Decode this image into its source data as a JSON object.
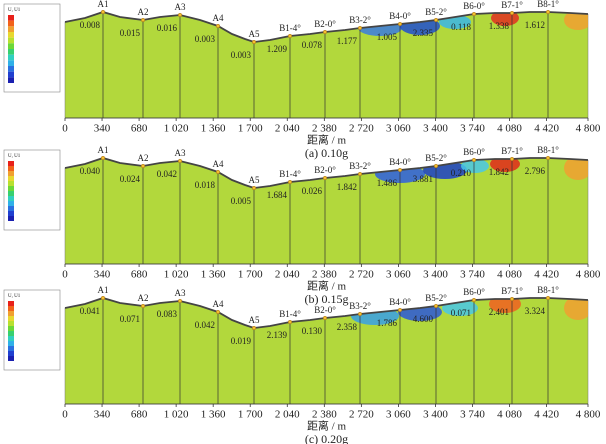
{
  "chart_data": [
    {
      "type": "contour",
      "legend_title": "U, U1",
      "xlabel": "距离 / m",
      "caption": "(a) 0.10g",
      "xlim": [
        0,
        4800
      ],
      "xticks": [
        0,
        340,
        680,
        {
          "value": 1020,
          "label": "1 020"
        },
        {
          "value": 1360,
          "label": "1 360"
        },
        {
          "value": 1700,
          "label": "1 700"
        },
        {
          "value": 2040,
          "label": "2 040"
        },
        {
          "value": 2380,
          "label": "2 380"
        },
        {
          "value": 2720,
          "label": "2 720"
        },
        {
          "value": 3060,
          "label": "3 060"
        },
        {
          "value": 3400,
          "label": "3 400"
        },
        {
          "value": 3740,
          "label": "3 740"
        },
        {
          "value": 4080,
          "label": "4 080"
        },
        {
          "value": 4420,
          "label": "4 420"
        },
        {
          "value": 4800,
          "label": "4 800"
        }
      ],
      "points": [
        "A1",
        "A2",
        "A3",
        "A4",
        "A5",
        "B1-4°",
        "B2-0°",
        "B3-2°",
        "B4-0°",
        "B5-2°",
        "B6-0°",
        "B7-1°",
        "B8-1°"
      ],
      "point_values": [
        "0.008",
        "0.015",
        "0.016",
        "0.003",
        "0.003",
        "1.209",
        "0.078",
        "1.177",
        "1.005",
        "2.335",
        "0.118",
        "1.338",
        "1.612"
      ]
    },
    {
      "type": "contour",
      "legend_title": "U, U1",
      "xlabel": "距离 / m",
      "caption": "(b) 0.15g",
      "xlim": [
        0,
        4800
      ],
      "xticks": [
        0,
        340,
        680,
        {
          "value": 1020,
          "label": "1 020"
        },
        {
          "value": 1360,
          "label": "1 360"
        },
        {
          "value": 1700,
          "label": "1 700"
        },
        {
          "value": 2040,
          "label": "2 040"
        },
        {
          "value": 2380,
          "label": "2 380"
        },
        {
          "value": 2720,
          "label": "2 720"
        },
        {
          "value": 3060,
          "label": "3 060"
        },
        {
          "value": 3400,
          "label": "3 400"
        },
        {
          "value": 3740,
          "label": "3 740"
        },
        {
          "value": 4080,
          "label": "4 080"
        },
        {
          "value": 4420,
          "label": "4 420"
        },
        {
          "value": 4800,
          "label": "4 800"
        }
      ],
      "points": [
        "A1",
        "A2",
        "A3",
        "A4",
        "A5",
        "B1-4°",
        "B2-0°",
        "B3-2°",
        "B4-0°",
        "B5-2°",
        "B6-0°",
        "B7-1°",
        "B8-1°"
      ],
      "point_values": [
        "0.040",
        "0.024",
        "0.042",
        "0.018",
        "0.005",
        "1.684",
        "0.026",
        "1.842",
        "1.486",
        "3.881",
        "0.210",
        "1.842",
        "2.796"
      ]
    },
    {
      "type": "contour",
      "legend_title": "U, U1",
      "xlabel": "距离 / m",
      "caption": "(c) 0.20g",
      "xlim": [
        0,
        4800
      ],
      "xticks": [
        0,
        340,
        680,
        {
          "value": 1020,
          "label": "1 020"
        },
        {
          "value": 1360,
          "label": "1 360"
        },
        {
          "value": 1700,
          "label": "1 700"
        },
        {
          "value": 2040,
          "label": "2 040"
        },
        {
          "value": 2380,
          "label": "2 380"
        },
        {
          "value": 2720,
          "label": "2 720"
        },
        {
          "value": 3060,
          "label": "3 060"
        },
        {
          "value": 3400,
          "label": "3 400"
        },
        {
          "value": 3740,
          "label": "3 740"
        },
        {
          "value": 4080,
          "label": "4 080"
        },
        {
          "value": 4420,
          "label": "4 420"
        },
        {
          "value": 4800,
          "label": "4 800"
        }
      ],
      "points": [
        "A1",
        "A2",
        "A3",
        "A4",
        "A5",
        "B1-4°",
        "B2-0°",
        "B3-2°",
        "B4-0°",
        "B5-2°",
        "B6-0°",
        "B7-1°",
        "B8-1°"
      ],
      "point_values": [
        "0.041",
        "0.071",
        "0.083",
        "0.042",
        "0.019",
        "2.139",
        "0.130",
        "2.358",
        "1.786",
        "4.600",
        "0.071",
        "2.401",
        "3.324"
      ]
    }
  ]
}
